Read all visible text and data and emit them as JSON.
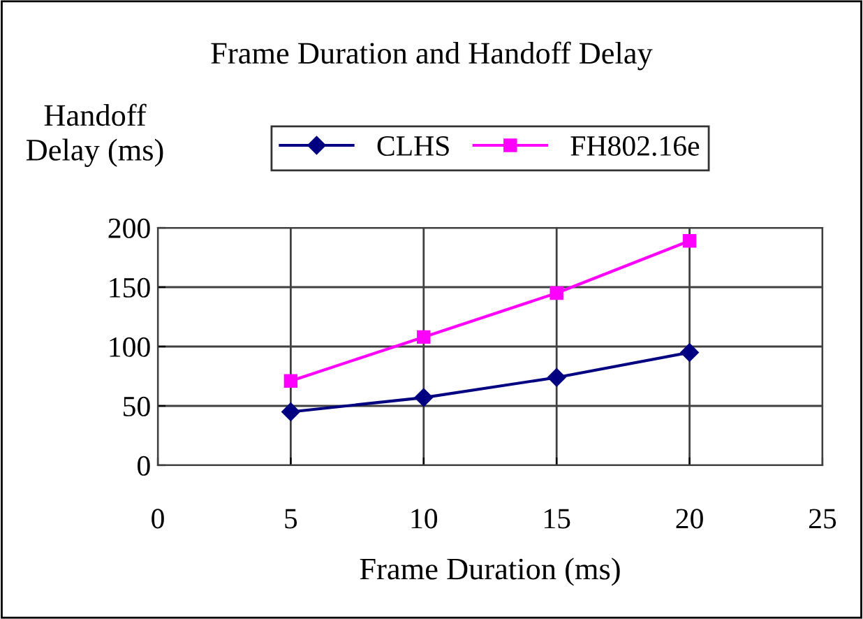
{
  "chart_data": {
    "type": "line",
    "title": "Frame Duration and Handoff Delay",
    "xlabel": "Frame Duration (ms)",
    "ylabel": "Handoff\nDelay (ms)",
    "x": [
      5,
      10,
      15,
      20
    ],
    "series": [
      {
        "name": "CLHS",
        "color": "#000080",
        "marker": "diamond",
        "values": [
          45,
          57,
          74,
          95
        ]
      },
      {
        "name": "FH802.16e",
        "color": "#ff00ff",
        "marker": "square",
        "values": [
          71,
          108,
          145,
          189
        ]
      }
    ],
    "xlim": [
      0,
      25
    ],
    "xticks": [
      0,
      5,
      10,
      15,
      20,
      25
    ],
    "ylim": [
      0,
      200
    ],
    "yticks": [
      0,
      50,
      100,
      150,
      200
    ],
    "grid": true,
    "legend": "top",
    "line_style": "solid"
  }
}
